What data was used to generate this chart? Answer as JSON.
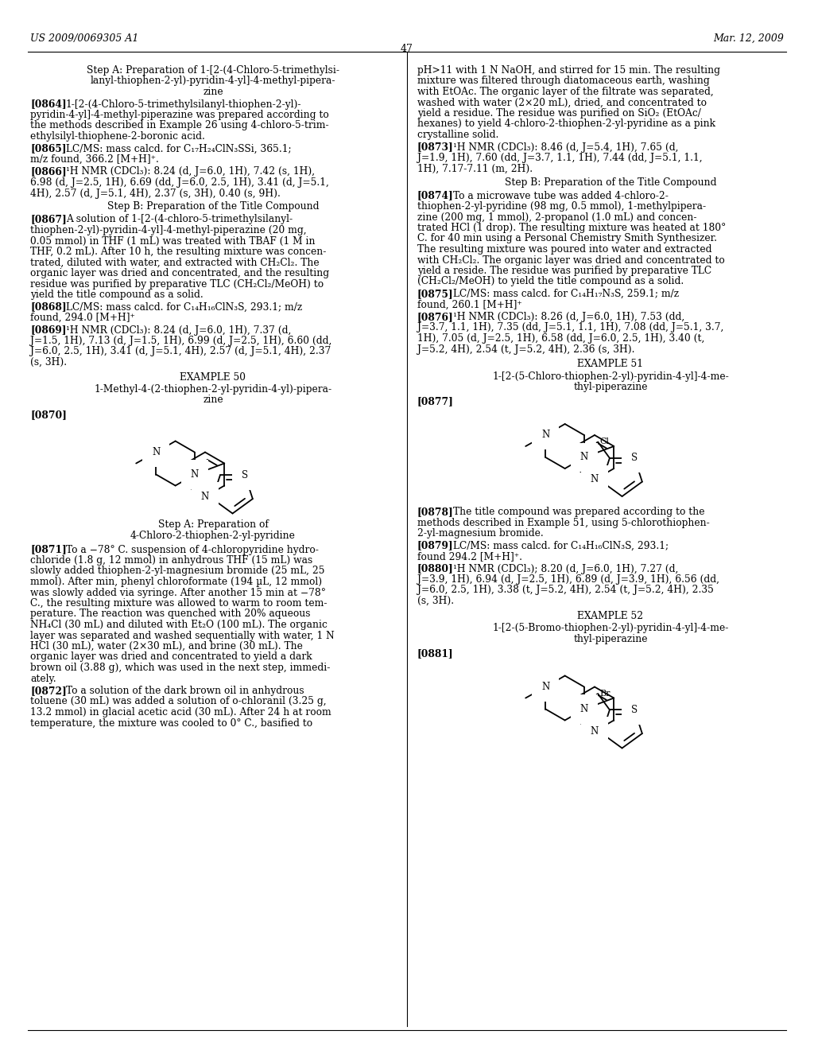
{
  "bg_color": "#ffffff",
  "page_number": "47",
  "header_left": "US 2009/0069305 A1",
  "header_right": "Mar. 12, 2009"
}
